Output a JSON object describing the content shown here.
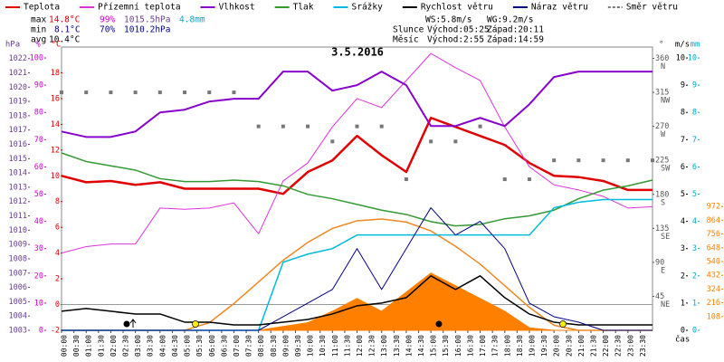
{
  "chart_data": {
    "type": "line",
    "title": "3.5.2016",
    "xlabel": "čas",
    "x": [
      0,
      1,
      2,
      3,
      4,
      5,
      6,
      7,
      8,
      9,
      10,
      11,
      12,
      13,
      14,
      15,
      16,
      17,
      18,
      19,
      20,
      21,
      22,
      23,
      24
    ],
    "xlim": [
      0,
      24
    ],
    "xticks": [
      {
        "value": 0,
        "label": "00:00"
      },
      {
        "value": 0.5,
        "label": "00:30"
      },
      {
        "value": 1,
        "label": "01:00"
      },
      {
        "value": 1.5,
        "label": "01:30"
      },
      {
        "value": 2,
        "label": "02:00"
      },
      {
        "value": 2.5,
        "label": "02:30"
      },
      {
        "value": 3,
        "label": "03:00"
      },
      {
        "value": 3.5,
        "label": "03:30"
      },
      {
        "value": 4,
        "label": "04:00"
      },
      {
        "value": 4.5,
        "label": "04:30"
      },
      {
        "value": 5,
        "label": "05:00"
      },
      {
        "value": 5.5,
        "label": "05:30"
      },
      {
        "value": 6,
        "label": "06:00"
      },
      {
        "value": 6.5,
        "label": "06:30"
      },
      {
        "value": 7,
        "label": "07:00"
      },
      {
        "value": 7.5,
        "label": "07:30"
      },
      {
        "value": 8,
        "label": "08:00"
      },
      {
        "value": 8.5,
        "label": "08:30"
      },
      {
        "value": 9,
        "label": "09:00"
      },
      {
        "value": 9.5,
        "label": "09:30"
      },
      {
        "value": 10,
        "label": "10:00"
      },
      {
        "value": 10.5,
        "label": "10:30"
      },
      {
        "value": 11,
        "label": "11:00"
      },
      {
        "value": 11.5,
        "label": "11:30"
      },
      {
        "value": 12,
        "label": "12:00"
      },
      {
        "value": 12.5,
        "label": "12:30"
      },
      {
        "value": 13,
        "label": "13:00"
      },
      {
        "value": 13.5,
        "label": "13:30"
      },
      {
        "value": 14,
        "label": "14:00"
      },
      {
        "value": 14.5,
        "label": "14:30"
      },
      {
        "value": 15,
        "label": "15:00"
      },
      {
        "value": 15.5,
        "label": "15:30"
      },
      {
        "value": 16,
        "label": "16:00"
      },
      {
        "value": 16.5,
        "label": "16:30"
      },
      {
        "value": 17,
        "label": "17:00"
      },
      {
        "value": 17.5,
        "label": "17:30"
      },
      {
        "value": 18,
        "label": "18:00"
      },
      {
        "value": 18.5,
        "label": "18:30"
      },
      {
        "value": 19,
        "label": "19:00"
      },
      {
        "value": 19.5,
        "label": "19:30"
      },
      {
        "value": 20,
        "label": "20:00"
      },
      {
        "value": 20.5,
        "label": "20:30"
      },
      {
        "value": 21,
        "label": "21:00"
      },
      {
        "value": 21.5,
        "label": "21:30"
      },
      {
        "value": 22,
        "label": "22:00"
      },
      {
        "value": 22.5,
        "label": "22:30"
      },
      {
        "value": 23,
        "label": "23:00"
      },
      {
        "value": 23.5,
        "label": "23:30"
      }
    ],
    "axes": {
      "pressure": {
        "label": "hPa",
        "color": "#6a3d8a",
        "lim": [
          1003,
          1022.8
        ],
        "ticks": [
          1003,
          1004,
          1005,
          1006,
          1007,
          1008,
          1009,
          1010,
          1011,
          1012,
          1013,
          1014,
          1015,
          1016,
          1017,
          1018,
          1019,
          1020,
          1021,
          1022
        ]
      },
      "humidity": {
        "label": "%",
        "color": "#cc00cc",
        "lim": [
          0,
          104
        ],
        "ticks": [
          0,
          10,
          20,
          30,
          40,
          50,
          60,
          70,
          80,
          90,
          100
        ]
      },
      "temp": {
        "label": "°C",
        "color": "#e00000",
        "lim": [
          -2,
          20
        ],
        "ticks": [
          -2,
          0,
          2,
          4,
          6,
          8,
          10,
          12,
          14,
          16,
          18
        ]
      },
      "direction": {
        "label": "°",
        "color": "#555555",
        "lim": [
          0,
          375
        ],
        "ticks": [
          45,
          90,
          135,
          180,
          225,
          270,
          315,
          360
        ],
        "names": [
          "NE",
          "E",
          "SE",
          "S",
          "SW",
          "W",
          "NW",
          "N"
        ]
      },
      "wind": {
        "label": "m/s",
        "color": "#000000",
        "lim": [
          0,
          10.4
        ],
        "ticks": [
          0,
          1,
          2,
          3,
          4,
          5,
          6,
          7,
          8,
          9,
          10
        ]
      },
      "rain": {
        "label": "mm",
        "color": "#00aacc",
        "lim": [
          0,
          10.4
        ],
        "ticks": [
          0,
          1,
          2,
          3,
          4,
          5,
          6,
          7,
          8,
          9,
          10
        ]
      },
      "radiation": {
        "color": "#ff8000",
        "lim": [
          0,
          2224
        ],
        "ticks": [
          108,
          216,
          324,
          432,
          540,
          648,
          756,
          864,
          972
        ]
      }
    },
    "series": [
      {
        "name": "Teplota",
        "color": "#e00000",
        "axis": "temp",
        "width": 2.5,
        "values": [
          10.0,
          9.5,
          9.6,
          9.3,
          9.5,
          9.0,
          9.0,
          9.0,
          9.0,
          8.6,
          10.3,
          11.2,
          13.1,
          11.6,
          10.3,
          14.5,
          13.8,
          13.1,
          12.4,
          11.0,
          10.0,
          9.9,
          9.6,
          8.9,
          8.9
        ]
      },
      {
        "name": "Přízemní teplota",
        "color": "#dd33dd",
        "axis": "temp",
        "width": 1,
        "values": [
          4.0,
          4.5,
          4.7,
          4.7,
          7.5,
          7.4,
          7.5,
          7.9,
          5.5,
          9.6,
          11.0,
          13.8,
          16.0,
          15.3,
          17.4,
          19.5,
          18.4,
          17.4,
          13.8,
          10.7,
          9.3,
          8.9,
          8.4,
          7.5,
          7.6
        ]
      },
      {
        "name": "Vlhkost",
        "color": "#8800cc",
        "axis": "humidity",
        "width": 2,
        "values": [
          73,
          71,
          71,
          73,
          80,
          81,
          84,
          85,
          85,
          95,
          95,
          88,
          90,
          95,
          90,
          75,
          75,
          78,
          75,
          83,
          93,
          95,
          95,
          95,
          95
        ]
      },
      {
        "name": "Tlak",
        "color": "#339933",
        "axis": "pressure",
        "width": 1.5,
        "values": [
          1015.4,
          1014.8,
          1014.5,
          1014.2,
          1013.6,
          1013.4,
          1013.4,
          1013.5,
          1013.4,
          1013.1,
          1012.5,
          1012.2,
          1011.8,
          1011.4,
          1011.1,
          1010.6,
          1010.3,
          1010.4,
          1010.8,
          1011.0,
          1011.4,
          1012.2,
          1012.8,
          1013.1,
          1013.5
        ]
      },
      {
        "name": "Srážky",
        "color": "#00bbdd",
        "axis": "rain",
        "width": 1.5,
        "values": [
          0,
          0,
          0,
          0,
          0,
          0,
          0,
          0,
          0,
          2.5,
          2.8,
          3.0,
          3.5,
          3.5,
          3.5,
          3.5,
          3.5,
          3.5,
          3.5,
          3.5,
          4.5,
          4.7,
          4.8,
          4.8,
          4.8
        ]
      },
      {
        "name": "Rychlost větru",
        "color": "#000000",
        "axis": "wind",
        "width": 1.5,
        "values": [
          0.7,
          0.8,
          0.7,
          0.6,
          0.6,
          0.3,
          0.3,
          0.2,
          0.2,
          0.3,
          0.4,
          0.6,
          0.9,
          1.0,
          1.2,
          2.0,
          1.5,
          2.0,
          1.2,
          0.6,
          0.3,
          0.2,
          0.2,
          0.2,
          0.2
        ]
      },
      {
        "name": "Náraz větru",
        "color": "#000080",
        "axis": "wind",
        "width": 1,
        "values": [
          0,
          0,
          0,
          0,
          0,
          0,
          0,
          0,
          0,
          0.5,
          1.0,
          1.5,
          3.0,
          1.5,
          3.0,
          4.5,
          3.5,
          4.0,
          3.0,
          1.0,
          0.5,
          0.3,
          0,
          0,
          0
        ]
      },
      {
        "name": "Směr větru",
        "color": "#777777",
        "axis": "direction",
        "mark": "square",
        "values": [
          315,
          315,
          315,
          315,
          315,
          315,
          315,
          315,
          270,
          270,
          270,
          250,
          270,
          270,
          200,
          250,
          250,
          270,
          200,
          200,
          225,
          225,
          225,
          225,
          225
        ]
      }
    ],
    "radiation": {
      "color": "#ff8000",
      "axis": "radiation",
      "fill": true,
      "values": [
        0,
        0,
        0,
        0,
        0,
        0,
        0,
        0,
        0,
        30,
        60,
        150,
        250,
        150,
        300,
        450,
        350,
        250,
        150,
        20,
        0,
        0,
        0,
        0,
        0
      ]
    },
    "radiation_theoretical": {
      "color": "#ee8822",
      "axis": "radiation",
      "values": [
        0,
        0,
        0,
        0,
        0,
        0,
        60,
        210,
        380,
        550,
        690,
        800,
        860,
        874,
        850,
        780,
        660,
        520,
        350,
        180,
        40,
        0,
        0,
        0,
        0
      ]
    },
    "stats": [
      {
        "label": "max",
        "temp": "14.8°C",
        "humidity": "99%",
        "pressure": "1015.5hPa",
        "rain": "4.8mm"
      },
      {
        "label": "min",
        "temp": "8.1°C",
        "humidity": "70%",
        "pressure": "1010.2hPa"
      },
      {
        "label": "avg",
        "temp": "10.4°C"
      }
    ],
    "wind_stats": {
      "ws": "WS:5.8m/s",
      "wg": "WG:9.2m/s"
    },
    "sun": {
      "label": "Slunce",
      "rise": "Východ:05:25",
      "set": "Západ:20:11"
    },
    "moon": {
      "label": "Měsíc",
      "rise": "Východ:2:55",
      "set": "Západ:14:59"
    }
  }
}
